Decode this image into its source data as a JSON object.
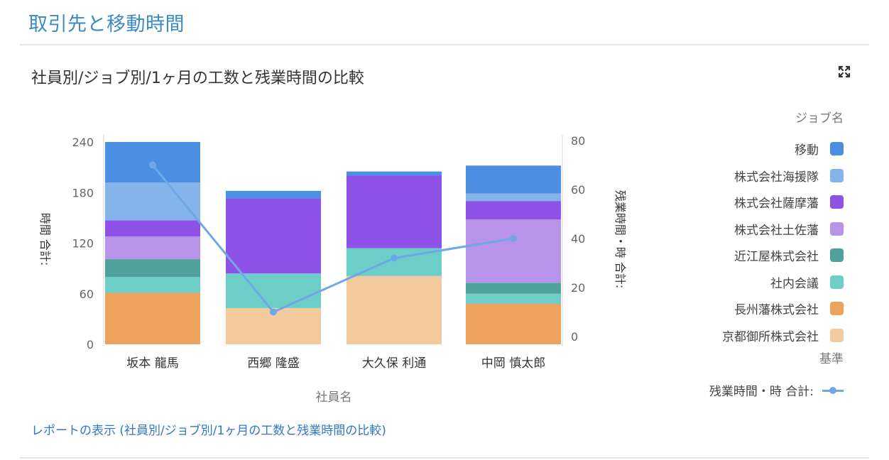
{
  "page": {
    "title": "取引先と移動時間",
    "card_title": "社員別/ジョブ別/1ヶ月の工数と残業時間の比較",
    "expand_icon": "expand-icon",
    "report_link": "レポートの表示 (社員別/ジョブ別/1ヶ月の工数と残業時間の比較)"
  },
  "legend": {
    "title": "ジョブ名",
    "items": [
      {
        "label": "移動",
        "color": "#4a8fe2"
      },
      {
        "label": "株式会社海援隊",
        "color": "#85b3ec"
      },
      {
        "label": "株式会社薩摩藩",
        "color": "#8e52e6"
      },
      {
        "label": "株式会社土佐藩",
        "color": "#b793ea"
      },
      {
        "label": "近江屋株式会社",
        "color": "#4fa29b"
      },
      {
        "label": "社内会議",
        "color": "#6dcec8"
      },
      {
        "label": "長州藩株式会社",
        "color": "#eda35b"
      },
      {
        "label": "京都御所株式会社",
        "color": "#f3c99e"
      }
    ],
    "line_title": "基準",
    "line_label": "残業時間・時 合計:",
    "line_color": "#6fa8e8"
  },
  "chart_data": {
    "type": "bar",
    "subtype": "stacked bar + line (dual axis)",
    "title": "社員別/ジョブ別/1ヶ月の工数と残業時間の比較",
    "xlabel": "社員名",
    "ylabel": "時間 合計:",
    "ylabel_right": "残業時間・時 合計:",
    "ylim": [
      0,
      240
    ],
    "yticks": [
      0,
      60,
      120,
      180,
      240
    ],
    "ylim_right": [
      0,
      80
    ],
    "yticks_right": [
      0,
      20,
      40,
      60,
      80
    ],
    "categories": [
      "坂本 龍馬",
      "西郷 隆盛",
      "大久保 利通",
      "中岡 慎太郎"
    ],
    "legend_title": "ジョブ名",
    "legend_position": "right",
    "grid": false,
    "series": [
      {
        "name": "長州藩株式会社",
        "color": "#eda35b",
        "values": [
          61,
          0,
          0,
          48
        ]
      },
      {
        "name": "京都御所株式会社",
        "color": "#f3c99e",
        "values": [
          0,
          43,
          81,
          0
        ]
      },
      {
        "name": "社内会議",
        "color": "#6dcec8",
        "values": [
          19,
          41,
          33,
          12
        ]
      },
      {
        "name": "近江屋株式会社",
        "color": "#4fa29b",
        "values": [
          21,
          0,
          0,
          13
        ]
      },
      {
        "name": "株式会社土佐藩",
        "color": "#b793ea",
        "values": [
          27,
          0,
          0,
          75
        ]
      },
      {
        "name": "株式会社薩摩藩",
        "color": "#8e52e6",
        "values": [
          19,
          89,
          86,
          22
        ]
      },
      {
        "name": "株式会社海援隊",
        "color": "#85b3ec",
        "values": [
          45,
          0,
          0,
          9
        ]
      },
      {
        "name": "移動",
        "color": "#4a8fe2",
        "values": [
          48,
          9,
          5,
          33
        ]
      }
    ],
    "line_series": {
      "name": "残業時間・時 合計:",
      "axis": "right",
      "color": "#6fa8e8",
      "values": [
        70,
        10,
        32,
        40
      ]
    }
  }
}
